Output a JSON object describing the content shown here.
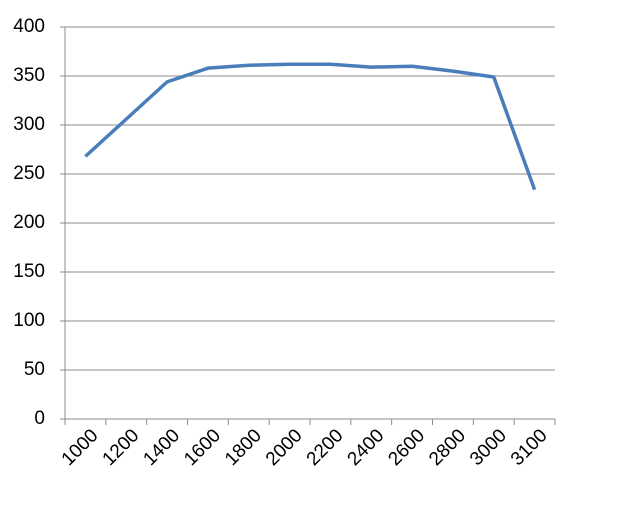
{
  "chart_data": {
    "type": "line",
    "categories": [
      "1000",
      "1200",
      "1400",
      "1600",
      "1800",
      "2000",
      "2200",
      "2400",
      "2600",
      "2800",
      "3000",
      "3100"
    ],
    "series": [
      {
        "color": "#4a7ebb",
        "values": [
          268,
          306,
          344,
          358,
          361,
          362,
          362,
          359,
          360,
          355,
          349,
          234
        ]
      }
    ],
    "ylim": [
      0,
      400
    ],
    "yticks": [
      0,
      50,
      100,
      150,
      200,
      250,
      300,
      350,
      400
    ],
    "grid": true
  }
}
